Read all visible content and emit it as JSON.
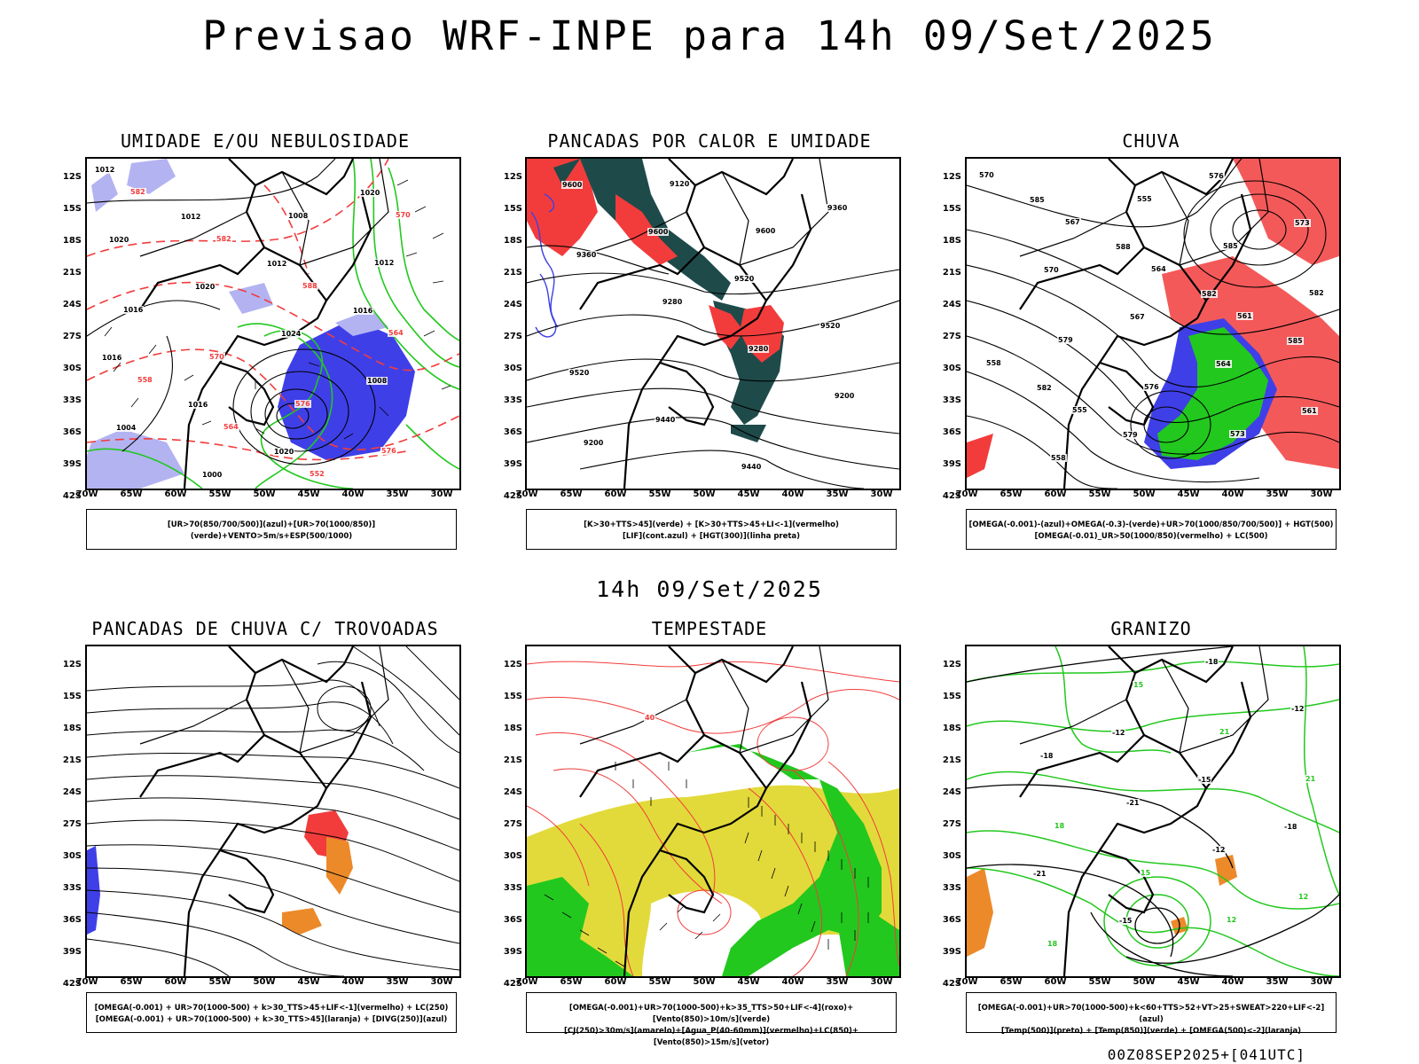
{
  "title": "Previsao WRF-INPE  para 14h 09/Set/2025",
  "subtitle": "14h 09/Set/2025",
  "footer": "00Z08SEP2025+[041UTC]",
  "axes": {
    "lat": [
      "12S",
      "15S",
      "18S",
      "21S",
      "24S",
      "27S",
      "30S",
      "33S",
      "36S",
      "39S",
      "42S"
    ],
    "lon": [
      "70W",
      "65W",
      "60W",
      "55W",
      "50W",
      "45W",
      "40W",
      "35W",
      "30W"
    ]
  },
  "colors": {
    "blue": "#3f3fe8",
    "lightblue": "#b3b3f2",
    "green": "#22c81e",
    "red": "#f23c3c",
    "darkteal": "#1e4a4a",
    "yellow": "#e2da3a",
    "orange": "#ec8a2a"
  },
  "panels": [
    {
      "title": "UMIDADE E/OU NEBULOSIDADE",
      "legend": [
        "[UR>70(850/700/500)](azul)+[UR>70(1000/850)](verde)+VENTO>5m/s+ESP(500/1000)"
      ],
      "contour_labels": [
        "1012",
        "1012",
        "1012",
        "1016",
        "1016",
        "1016",
        "1020",
        "1020",
        "1020",
        "1020",
        "1024",
        "1008",
        "1004",
        "1000",
        "1008",
        "1012",
        "1016",
        "570",
        "576",
        "576",
        "582",
        "582",
        "588",
        "564",
        "558",
        "564",
        "552",
        "570"
      ]
    },
    {
      "title": "PANCADAS POR CALOR E UMIDADE",
      "legend": [
        "[K>30+TTS>45](verde) + [K>30+TTS>45+LI<-1](vermelho)",
        "[LIF](cont.azul) + [HGT(300)](linha preta)"
      ],
      "contour_labels": [
        "9600",
        "9600",
        "9520",
        "9520",
        "9520",
        "9440",
        "9440",
        "9360",
        "9360",
        "9280",
        "9280",
        "9200",
        "9200",
        "9120",
        "9600"
      ]
    },
    {
      "title": "CHUVA",
      "legend": [
        "[OMEGA(-0.001)-(azul)+OMEGA(-0.3)-(verde)+UR>70(1000/850/700/500)] + HGT(500)",
        "[OMEGA(-0.01)_UR>50(1000/850)(vermelho) + LC(500)"
      ],
      "contour_labels": [
        "585",
        "588",
        "582",
        "585",
        "582",
        "579",
        "576",
        "573",
        "570",
        "567",
        "564",
        "561",
        "558",
        "555",
        "585",
        "582",
        "579",
        "576",
        "573",
        "570",
        "567",
        "564",
        "561",
        "558",
        "555"
      ]
    },
    {
      "title": "PANCADAS DE CHUVA C/ TROVOADAS",
      "legend": [
        "[OMEGA(-0.001) + UR>70(1000-500) + k>30_TTS>45+LIF<-1](vermelho) + LC(250)",
        "[OMEGA(-0.001) + UR>70(1000-500) + k>30_TTS>45](laranja) + [DIVG(250)](azul)"
      ],
      "contour_labels": []
    },
    {
      "title": "TEMPESTADE",
      "legend": [
        "[OMEGA(-0.001)+UR>70(1000-500)+k>35_TTS>50+LIF<-4](roxo)+[Vento(850)>10m/s](verde)",
        "[CJ(250)>30m/s](amarelo)+[Agua_P(40-60mm)](vermelho)+LC(850)+[Vento(850)>15m/s](vetor)"
      ],
      "contour_labels": [
        "40"
      ]
    },
    {
      "title": "GRANIZO",
      "legend": [
        "[OMEGA(-0.001)+UR>70(1000-500)+k<60+TTS>52+VT>25+SWEAT>220+LIF<-2](azul)",
        "[Temp(500)](preto) + [Temp(850)](verde) + [OMEGA(500)<-2](laranja)"
      ],
      "contour_labels": [
        "-12",
        "-15",
        "-18",
        "-21",
        "-15",
        "-18",
        "-12",
        "-18",
        "-21",
        "-12",
        "12",
        "18",
        "15",
        "21",
        "21",
        "18",
        "15",
        "12"
      ]
    }
  ]
}
